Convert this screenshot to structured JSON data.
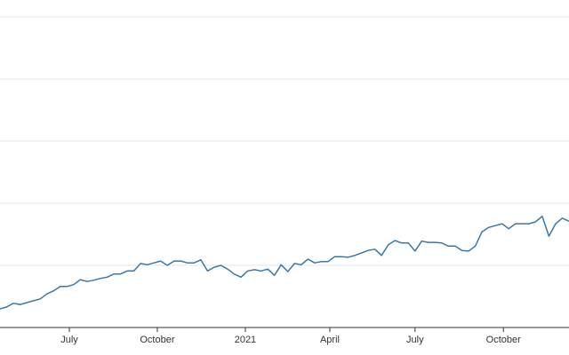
{
  "chart_data": {
    "type": "line",
    "color": "#3a78a8",
    "grid": true,
    "values": [
      0.3,
      0.33,
      0.39,
      0.37,
      0.4,
      0.43,
      0.46,
      0.54,
      0.59,
      0.66,
      0.66,
      0.69,
      0.77,
      0.74,
      0.76,
      0.79,
      0.81,
      0.86,
      0.86,
      0.91,
      0.91,
      1.03,
      1.01,
      1.04,
      1.07,
      1.0,
      1.07,
      1.07,
      1.04,
      1.04,
      1.09,
      0.91,
      0.97,
      1.0,
      0.94,
      0.86,
      0.81,
      0.91,
      0.93,
      0.91,
      0.94,
      0.84,
      1.01,
      0.9,
      1.03,
      1.01,
      1.1,
      1.04,
      1.06,
      1.06,
      1.14,
      1.14,
      1.13,
      1.16,
      1.2,
      1.24,
      1.26,
      1.16,
      1.33,
      1.4,
      1.36,
      1.36,
      1.23,
      1.39,
      1.37,
      1.37,
      1.36,
      1.31,
      1.31,
      1.24,
      1.23,
      1.31,
      1.54,
      1.61,
      1.64,
      1.67,
      1.59,
      1.67,
      1.67,
      1.67,
      1.7,
      1.79,
      1.47,
      1.67,
      1.76,
      1.71
    ],
    "xlim": [
      0,
      85
    ],
    "xticks": [
      {
        "value": 10.36,
        "label": "July"
      },
      {
        "value": 23.5,
        "label": "October"
      },
      {
        "value": 36.65,
        "label": "2021"
      },
      {
        "value": 49.27,
        "label": "April"
      },
      {
        "value": 62.0,
        "label": "July"
      },
      {
        "value": 75.2,
        "label": "October"
      }
    ],
    "ylim": [
      0,
      5
    ],
    "yticks": [
      1,
      2,
      3,
      4,
      5
    ]
  }
}
